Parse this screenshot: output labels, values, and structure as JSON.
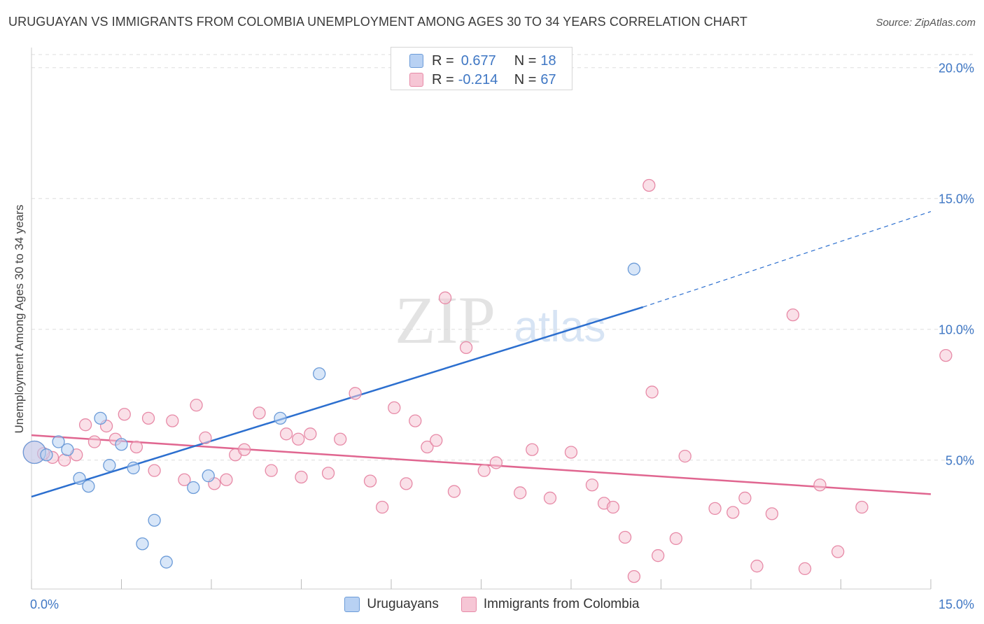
{
  "title": "URUGUAYAN VS IMMIGRANTS FROM COLOMBIA UNEMPLOYMENT AMONG AGES 30 TO 34 YEARS CORRELATION CHART",
  "source": "Source: ZipAtlas.com",
  "watermark": {
    "zip": "ZIP",
    "atlas": "atlas"
  },
  "legend_top": [
    {
      "r_label": "R =",
      "r_value": "0.677",
      "n_label": "N =",
      "n_value": "18"
    },
    {
      "r_label": "R =",
      "r_value": "-0.214",
      "n_label": "N =",
      "n_value": "67"
    }
  ],
  "legend_bottom": {
    "series1": "Uruguayans",
    "series2": "Immigrants from Colombia"
  },
  "colors": {
    "blue_fill": "#b8d1f3",
    "blue_stroke": "#6b9bd8",
    "blue_line": "#2c6fcf",
    "pink_fill": "#f6c6d5",
    "pink_stroke": "#e78aa7",
    "pink_line": "#e06690",
    "axis_text": "#3f77c4",
    "grid": "#dddddd"
  },
  "chart_data": {
    "type": "scatter",
    "title": "URUGUAYAN VS IMMIGRANTS FROM COLOMBIA UNEMPLOYMENT AMONG AGES 30 TO 34 YEARS CORRELATION CHART",
    "xlabel": "",
    "ylabel": "Unemployment Among Ages 30 to 34 years",
    "xlim": [
      0,
      15
    ],
    "ylim": [
      0.5,
      20.5
    ],
    "x_tick_labels": [
      {
        "value": 0,
        "label": "0.0%"
      },
      {
        "value": 15,
        "label": "15.0%"
      }
    ],
    "y_tick_labels": [
      {
        "value": 5,
        "label": "5.0%"
      },
      {
        "value": 10,
        "label": "10.0%"
      },
      {
        "value": 15,
        "label": "15.0%"
      },
      {
        "value": 20,
        "label": "20.0%"
      }
    ],
    "series": [
      {
        "name": "Uruguayans",
        "r": 0.677,
        "n": 18,
        "points": [
          [
            0.05,
            5.3,
            "large"
          ],
          [
            0.25,
            5.2
          ],
          [
            0.45,
            5.7
          ],
          [
            0.6,
            5.4
          ],
          [
            0.8,
            4.3
          ],
          [
            0.95,
            4.0
          ],
          [
            1.15,
            6.6
          ],
          [
            1.3,
            4.8
          ],
          [
            1.5,
            5.6
          ],
          [
            1.7,
            4.7
          ],
          [
            1.85,
            1.8
          ],
          [
            2.05,
            2.7
          ],
          [
            2.25,
            1.1
          ],
          [
            2.7,
            3.95
          ],
          [
            2.95,
            4.4
          ],
          [
            4.15,
            6.6
          ],
          [
            4.8,
            8.3
          ],
          [
            10.05,
            12.3
          ]
        ],
        "trend_solid": [
          [
            0,
            3.6
          ],
          [
            10.2,
            10.85
          ]
        ],
        "trend_dashed": [
          [
            10.2,
            10.85
          ],
          [
            15,
            14.5
          ]
        ]
      },
      {
        "name": "Immigrants from Colombia",
        "r": -0.214,
        "n": 67,
        "points": [
          [
            0.05,
            5.3,
            "large"
          ],
          [
            0.35,
            5.1
          ],
          [
            0.55,
            5.0
          ],
          [
            0.75,
            5.2
          ],
          [
            0.9,
            6.35
          ],
          [
            1.05,
            5.7
          ],
          [
            1.25,
            6.3
          ],
          [
            1.4,
            5.8
          ],
          [
            1.55,
            6.75
          ],
          [
            1.75,
            5.5
          ],
          [
            1.95,
            6.6
          ],
          [
            2.05,
            4.6
          ],
          [
            2.35,
            6.5
          ],
          [
            2.55,
            4.25
          ],
          [
            2.75,
            7.1
          ],
          [
            2.9,
            5.85
          ],
          [
            3.05,
            4.1
          ],
          [
            3.25,
            4.25
          ],
          [
            3.4,
            5.2
          ],
          [
            3.55,
            5.4
          ],
          [
            3.8,
            6.8
          ],
          [
            4.0,
            4.6
          ],
          [
            4.25,
            6.0
          ],
          [
            4.45,
            5.8
          ],
          [
            4.5,
            4.35
          ],
          [
            4.65,
            6.0
          ],
          [
            4.95,
            4.5
          ],
          [
            5.15,
            5.8
          ],
          [
            5.4,
            7.55
          ],
          [
            5.65,
            4.2
          ],
          [
            5.85,
            3.2
          ],
          [
            6.05,
            7.0
          ],
          [
            6.25,
            4.1
          ],
          [
            6.4,
            6.5
          ],
          [
            6.6,
            5.5
          ],
          [
            6.75,
            5.75
          ],
          [
            6.9,
            11.2
          ],
          [
            7.05,
            3.8
          ],
          [
            7.25,
            9.3
          ],
          [
            7.55,
            4.6
          ],
          [
            7.75,
            4.9
          ],
          [
            8.15,
            3.75
          ],
          [
            8.35,
            5.4
          ],
          [
            8.65,
            3.55
          ],
          [
            9.0,
            5.3
          ],
          [
            9.35,
            4.05
          ],
          [
            9.55,
            3.35
          ],
          [
            9.7,
            3.2
          ],
          [
            9.9,
            2.05
          ],
          [
            10.05,
            0.55
          ],
          [
            10.3,
            15.5
          ],
          [
            10.35,
            7.6
          ],
          [
            10.45,
            1.35
          ],
          [
            10.75,
            2.0
          ],
          [
            10.9,
            5.15
          ],
          [
            11.4,
            3.15
          ],
          [
            11.7,
            3.0
          ],
          [
            11.9,
            3.55
          ],
          [
            12.1,
            0.95
          ],
          [
            12.35,
            2.95
          ],
          [
            12.7,
            10.55
          ],
          [
            12.9,
            0.85
          ],
          [
            13.15,
            4.05
          ],
          [
            13.45,
            1.5
          ],
          [
            13.85,
            3.2
          ],
          [
            15.25,
            9.0
          ],
          [
            0.2,
            5.25
          ]
        ],
        "trend_solid": [
          [
            0,
            5.95
          ],
          [
            15,
            3.7
          ]
        ]
      }
    ]
  }
}
